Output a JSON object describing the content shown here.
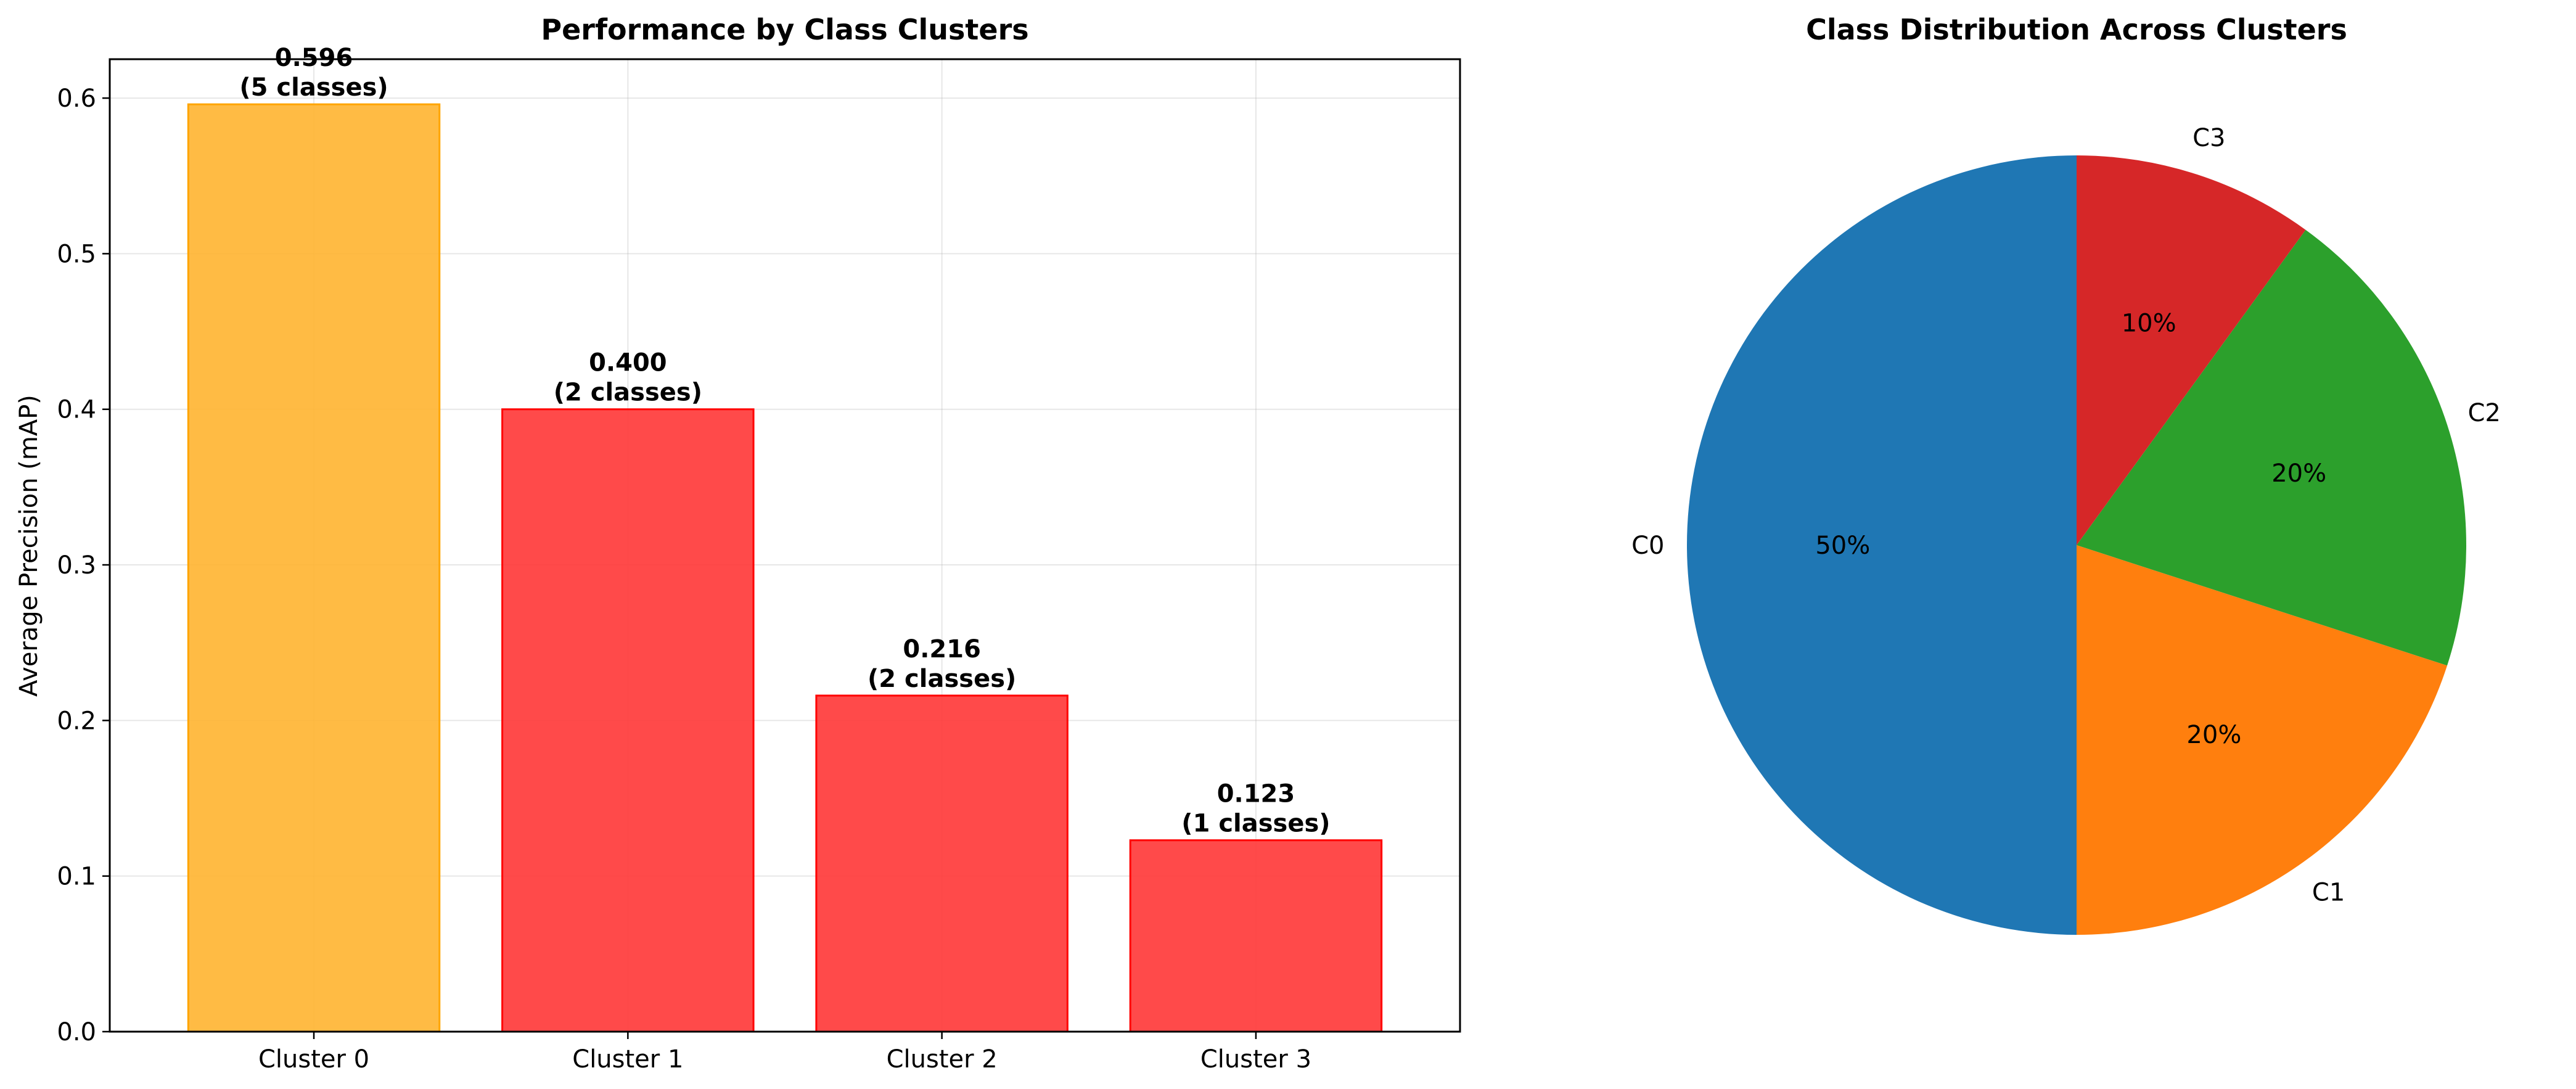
{
  "chart_data": [
    {
      "type": "bar",
      "title": "Performance by Class Clusters",
      "xlabel": "",
      "ylabel": "Average Precision (mAP)",
      "categories": [
        "Cluster 0",
        "Cluster 1",
        "Cluster 2",
        "Cluster 3"
      ],
      "values": [
        0.596,
        0.4,
        0.216,
        0.123
      ],
      "value_labels": [
        "0.596",
        "0.400",
        "0.216",
        "0.123"
      ],
      "class_labels": [
        "(5 classes)",
        "(2 classes)",
        "(2 classes)",
        "(1 classes)"
      ],
      "bar_colors": [
        "#ffb534",
        "#ff3b3b",
        "#ff3b3b",
        "#ff3b3b"
      ],
      "bar_edge_colors": [
        "#ffa500",
        "#ff0000",
        "#ff0000",
        "#ff0000"
      ],
      "ylim": [
        0,
        0.625
      ],
      "yticks": [
        0.0,
        0.1,
        0.2,
        0.3,
        0.4,
        0.5,
        0.6
      ],
      "ytick_labels": [
        "0.0",
        "0.1",
        "0.2",
        "0.3",
        "0.4",
        "0.5",
        "0.6"
      ],
      "grid": true
    },
    {
      "type": "pie",
      "title": "Class Distribution Across Clusters",
      "labels": [
        "C0",
        "C1",
        "C2",
        "C3"
      ],
      "values": [
        50,
        20,
        20,
        10
      ],
      "pct_labels": [
        "50%",
        "20%",
        "20%",
        "10%"
      ],
      "colors": [
        "#1f77b4",
        "#ff7f0e",
        "#2ca02c",
        "#d62728"
      ],
      "start_angle": 90,
      "direction": "counterclockwise"
    }
  ]
}
